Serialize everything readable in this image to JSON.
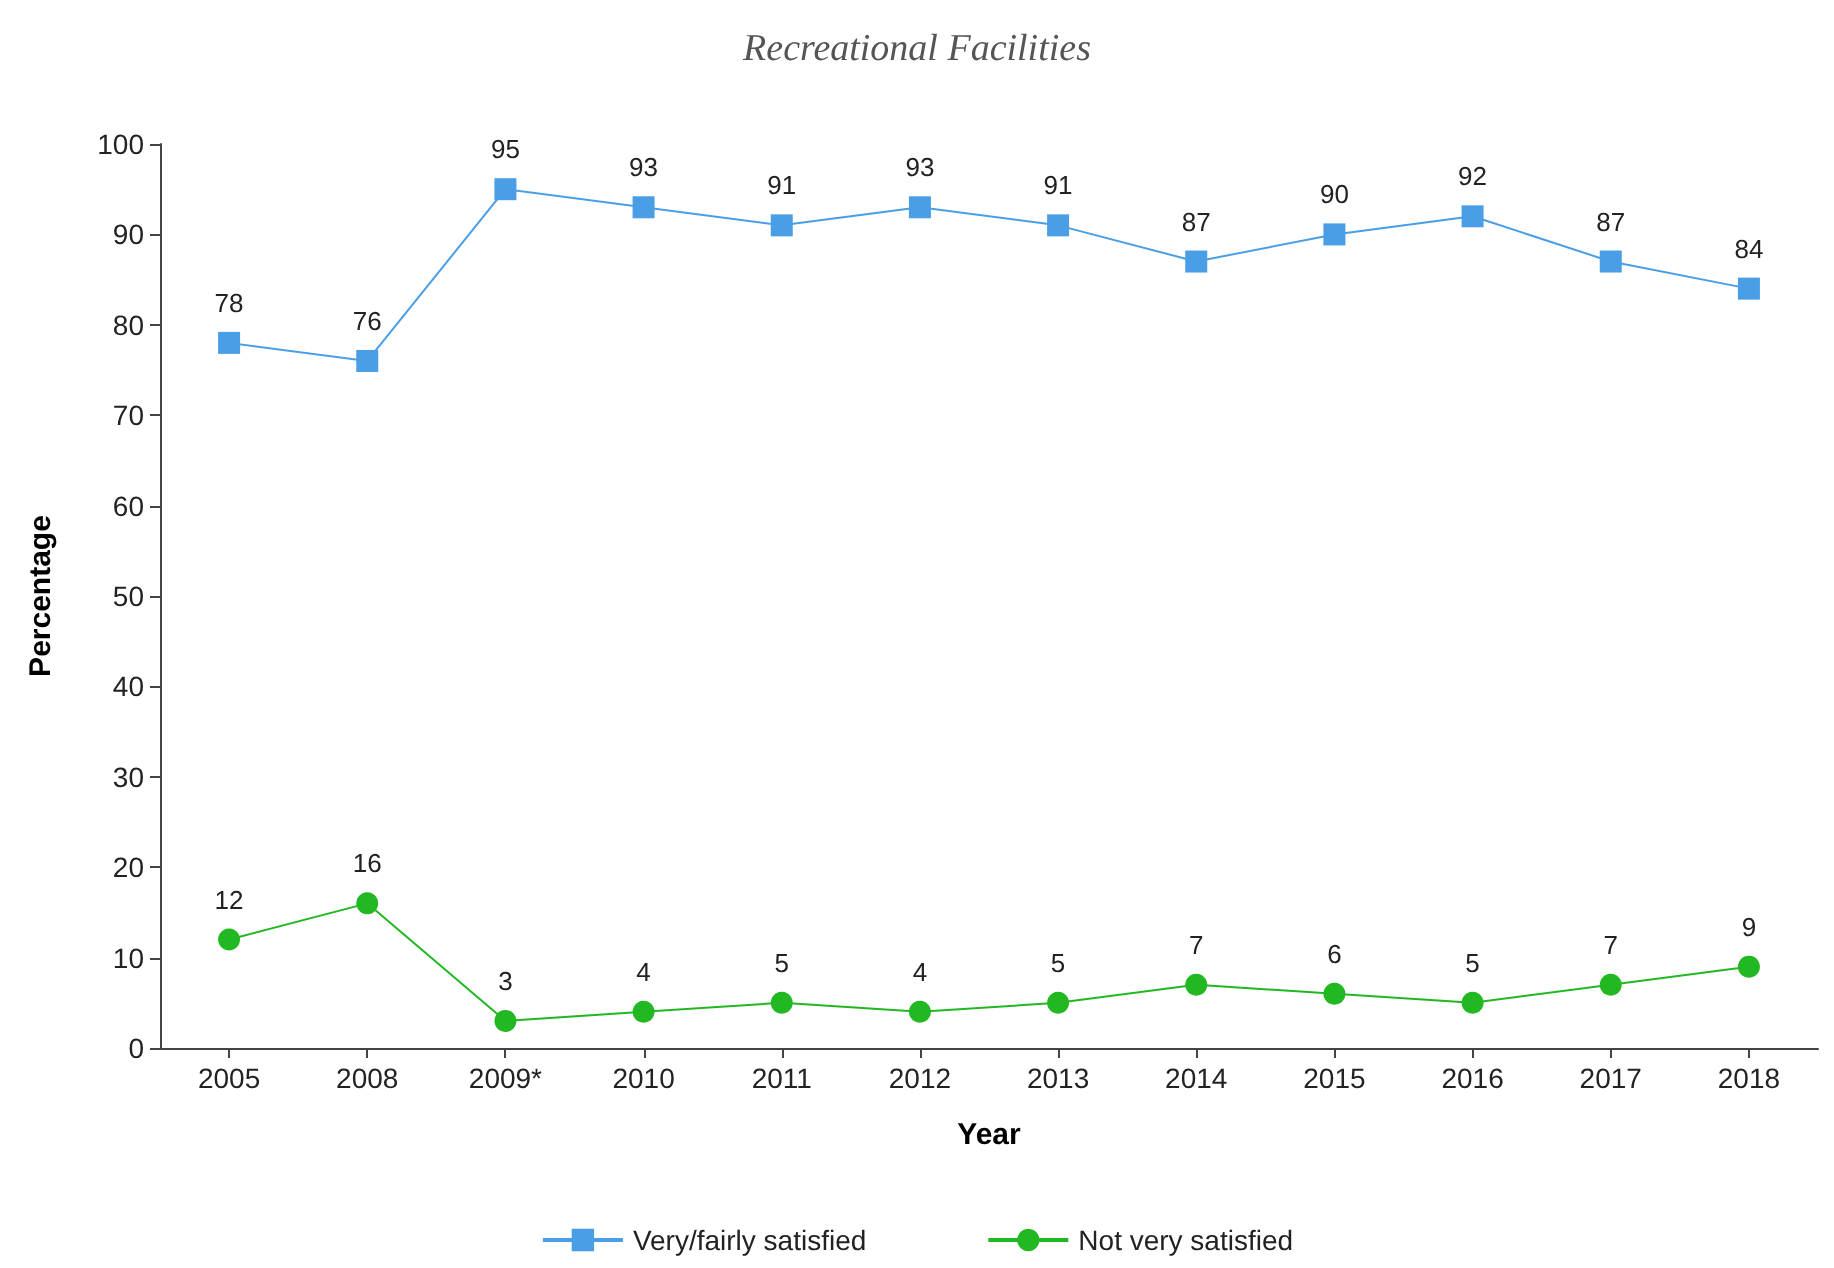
{
  "chart_data": {
    "type": "line",
    "title": "Recreational Facilities",
    "xlabel": "Year",
    "ylabel": "Percentage",
    "categories": [
      "2005",
      "2008",
      "2009*",
      "2010",
      "2011",
      "2012",
      "2013",
      "2014",
      "2015",
      "2016",
      "2017",
      "2018"
    ],
    "series": [
      {
        "name": "Very/fairly satisfied",
        "color": "#4a9ee6",
        "marker": "square",
        "values": [
          78,
          76,
          95,
          93,
          91,
          93,
          91,
          87,
          90,
          92,
          87,
          84
        ]
      },
      {
        "name": "Not very satisfied",
        "color": "#22b822",
        "marker": "circle",
        "values": [
          12,
          16,
          3,
          4,
          5,
          4,
          5,
          7,
          6,
          5,
          7,
          9
        ]
      }
    ],
    "ylim": [
      0,
      100
    ],
    "yticks": [
      0,
      10,
      20,
      30,
      40,
      50,
      60,
      70,
      80,
      90,
      100
    ],
    "grid": false,
    "legend": "bottom",
    "data_labels": true,
    "line_style": "solid"
  }
}
